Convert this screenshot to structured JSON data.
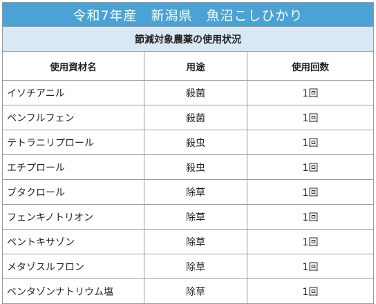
{
  "title": "令和7年産　新潟県　魚沼こしひかり",
  "subtitle": "節減対象農薬の使用状況",
  "headers": {
    "name": "使用資材名",
    "use": "用途",
    "count": "使用回数"
  },
  "rows": [
    {
      "name": "イソチアニル",
      "use": "殺菌",
      "count": "1回"
    },
    {
      "name": "ペンフルフェン",
      "use": "殺菌",
      "count": "1回"
    },
    {
      "name": "テトラニリプロール",
      "use": "殺虫",
      "count": "1回"
    },
    {
      "name": "エチプロール",
      "use": "殺虫",
      "count": "1回"
    },
    {
      "name": "ブタクロール",
      "use": "除草",
      "count": "1回"
    },
    {
      "name": "フェンキノトリオン",
      "use": "除草",
      "count": "1回"
    },
    {
      "name": "ペントキサゾン",
      "use": "除草",
      "count": "1回"
    },
    {
      "name": "メタゾスルフロン",
      "use": "除草",
      "count": "1回"
    },
    {
      "name": "ベンタゾンナトリウム塩",
      "use": "除草",
      "count": "1回"
    }
  ],
  "colors": {
    "title_bg": "#4aa2d5",
    "subtitle_bg": "#d9e8f5",
    "border": "#9a9a9a"
  }
}
